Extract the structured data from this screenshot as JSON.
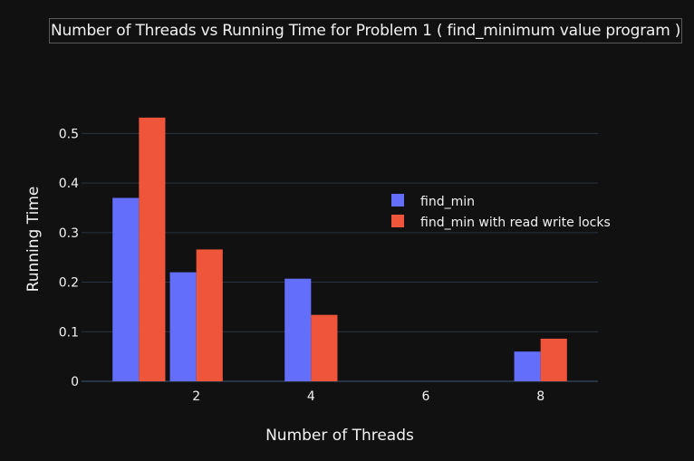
{
  "chart_data": {
    "type": "bar",
    "title": "Number of Threads vs Running Time for Problem 1 ( find_minimum value program )",
    "xlabel": "Number of Threads",
    "ylabel": "Running Time",
    "x": [
      1,
      2,
      4,
      8
    ],
    "xticks": [
      "2",
      "4",
      "6",
      "8"
    ],
    "xlim": [
      0,
      9
    ],
    "ylim": [
      0,
      0.55
    ],
    "yticks": [
      "0",
      "0.1",
      "0.2",
      "0.3",
      "0.4",
      "0.5"
    ],
    "grid": true,
    "legend_position": "right",
    "series": [
      {
        "name": "find_min",
        "color": "#636efa",
        "values": [
          0.37,
          0.22,
          0.207,
          0.06
        ]
      },
      {
        "name": "find_min with read write locks",
        "color": "#ef553b",
        "values": [
          0.532,
          0.266,
          0.134,
          0.086
        ]
      }
    ]
  },
  "colors": {
    "background": "#111111",
    "grid": "#283442",
    "text": "#f2f2f2"
  }
}
